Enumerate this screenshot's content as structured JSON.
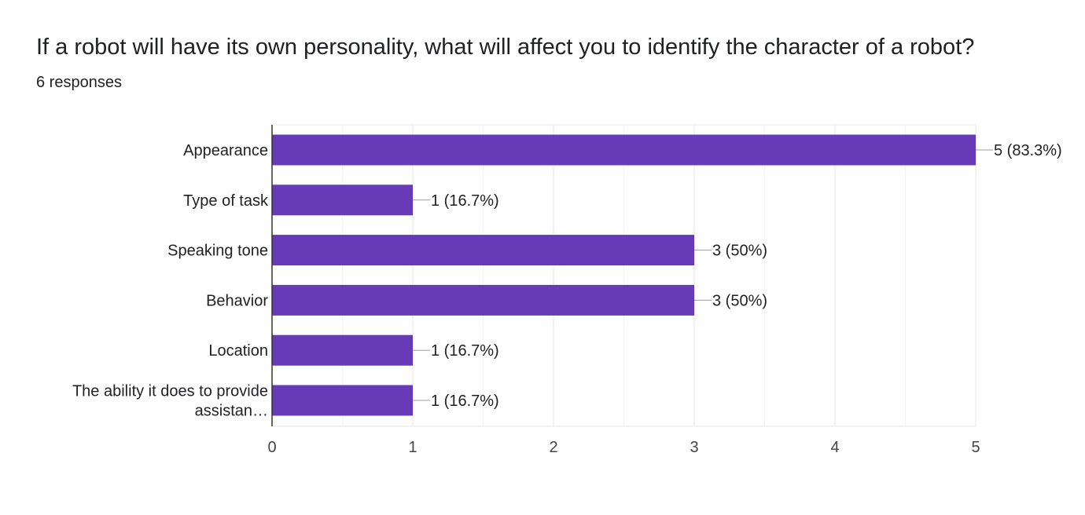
{
  "question": {
    "title": "If a robot will have its own personality, what will affect you to identify the character of a robot?",
    "response_count": "6 responses"
  },
  "colors": {
    "bar": "#673ab7",
    "text": "#202124",
    "axis_text": "#444444",
    "grid": "#ebebeb",
    "axis_line": "#333333",
    "leader": "#9e9e9e"
  },
  "chart_data": {
    "type": "bar",
    "orientation": "horizontal",
    "categories": [
      "Appearance",
      "Type of task",
      "Speaking tone",
      "Behavior",
      "Location",
      "The ability it does to provide assistan…"
    ],
    "category_lines": [
      [
        "Appearance"
      ],
      [
        "Type of task"
      ],
      [
        "Speaking tone"
      ],
      [
        "Behavior"
      ],
      [
        "Location"
      ],
      [
        "The ability it does to provide",
        "assistan…"
      ]
    ],
    "values": [
      5,
      1,
      3,
      3,
      1,
      1
    ],
    "data_labels": [
      "5 (83.3%)",
      "1 (16.7%)",
      "3 (50%)",
      "3 (50%)",
      "1 (16.7%)",
      "1 (16.7%)"
    ],
    "xlim": [
      0,
      5
    ],
    "xticks": [
      "0",
      "1",
      "2",
      "3",
      "4",
      "5"
    ],
    "grid": true,
    "legend": "none"
  }
}
